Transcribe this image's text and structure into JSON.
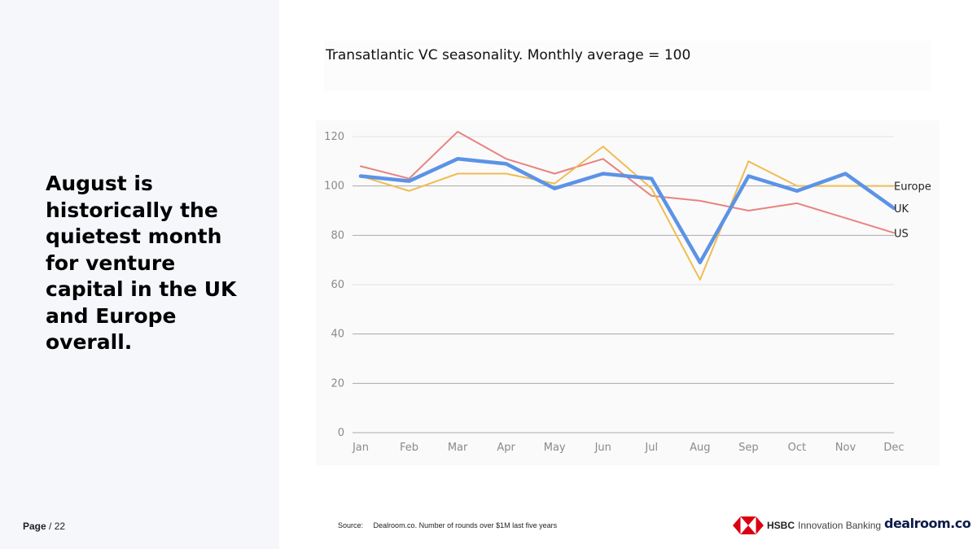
{
  "headline": "August is historically the quietest month for venture capital in the UK and Europe overall.",
  "footer": {
    "page_word": "Page",
    "page_total": "/ 22",
    "source_prefix": "Source:",
    "source_text": "Dealroom.co. Number of rounds over $1M last five years"
  },
  "logos": {
    "hsbc_name": "HSBC",
    "hsbc_sub": "Innovation Banking",
    "dealroom": "dealroom.co"
  },
  "colors": {
    "europe": "#f0bc52",
    "uk": "#5b93e6",
    "us": "#e8837f",
    "hsbc_red": "#db0011",
    "grid_major": "#aaaaaa",
    "grid_minor": "#e2e2e2"
  },
  "chart_data": {
    "type": "line",
    "title": "Transatlantic VC seasonality. Monthly average = 100",
    "categories": [
      "Jan",
      "Feb",
      "Mar",
      "Apr",
      "May",
      "Jun",
      "Jul",
      "Aug",
      "Sep",
      "Oct",
      "Nov",
      "Dec"
    ],
    "yticks": [
      0,
      20,
      40,
      60,
      80,
      100,
      120
    ],
    "ylim": [
      0,
      120
    ],
    "xlabel": "",
    "ylabel": "",
    "grid": true,
    "legend": "right-end labels",
    "series": [
      {
        "name": "Europe",
        "values": [
          104,
          98,
          105,
          105,
          101,
          116,
          99,
          62,
          110,
          100,
          100,
          100
        ]
      },
      {
        "name": "UK",
        "values": [
          104,
          102,
          111,
          109,
          99,
          105,
          103,
          69,
          104,
          98,
          105,
          91
        ]
      },
      {
        "name": "US",
        "values": [
          108,
          103,
          122,
          111,
          105,
          111,
          96,
          94,
          90,
          93,
          87,
          81
        ]
      }
    ]
  }
}
